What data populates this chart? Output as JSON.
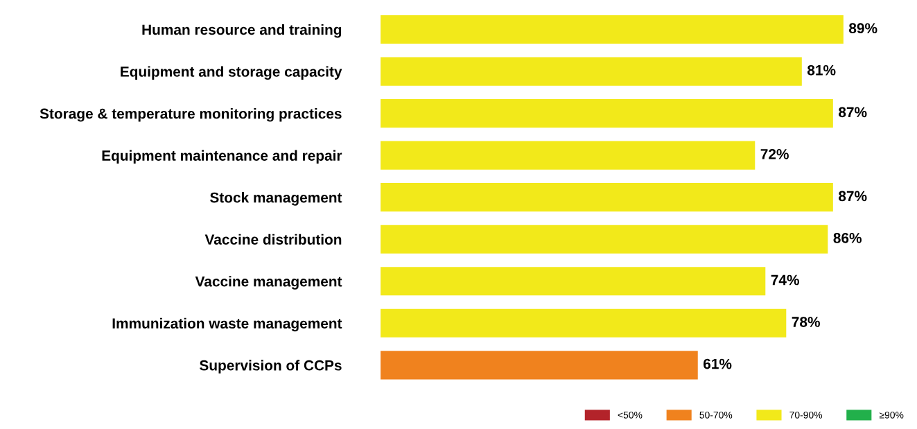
{
  "chart_data": {
    "type": "bar",
    "orientation": "horizontal",
    "categories": [
      "Human resource and training",
      "Equipment and storage capacity",
      "Storage & temperature monitoring practices",
      "Equipment maintenance and repair",
      "Stock management",
      "Vaccine distribution",
      "Vaccine management",
      "Immunization waste management",
      "Supervision of CCPs"
    ],
    "series": [
      {
        "name": "<50%",
        "color": "#b3232a",
        "values": [
          null,
          null,
          null,
          null,
          null,
          null,
          null,
          null,
          null
        ]
      },
      {
        "name": "50-70%",
        "color": "#f0821e",
        "values": [
          null,
          null,
          null,
          null,
          null,
          null,
          null,
          null,
          61
        ],
        "value_labels": [
          null,
          null,
          null,
          null,
          null,
          null,
          null,
          null,
          "61%"
        ]
      },
      {
        "name": "70-90%",
        "color": "#f2e91a",
        "values": [
          89,
          81,
          87,
          72,
          87,
          86,
          74,
          78,
          null
        ],
        "value_labels": [
          "89%",
          "81%",
          "87%",
          "72%",
          "87%",
          "86%",
          "74%",
          "78%",
          null
        ]
      },
      {
        "name": "≥90%",
        "color": "#22b04b",
        "values": [
          null,
          null,
          null,
          null,
          null,
          null,
          null,
          null,
          null
        ]
      }
    ],
    "tick_labels": "y",
    "legend": "bottom right",
    "grid": false
  }
}
